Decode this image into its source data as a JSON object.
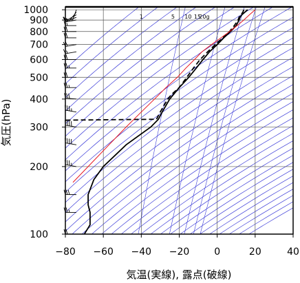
{
  "chart_data": {
    "type": "line",
    "title": "",
    "xlabel": "気温(実線), 露点(破線)",
    "ylabel": "気圧(hPa)",
    "xlim": [
      -80,
      40
    ],
    "ylim": [
      1030,
      100
    ],
    "y_scale": "log",
    "x_ticks": [
      "−80",
      "−60",
      "−40",
      "−20",
      "0",
      "20",
      "40"
    ],
    "x_tick_values": [
      -80,
      -60,
      -40,
      -20,
      0,
      20,
      40
    ],
    "y_ticks": [
      "100",
      "200",
      "300",
      "400",
      "500",
      "600",
      "700",
      "800",
      "900",
      "1000"
    ],
    "y_tick_values": [
      100,
      200,
      300,
      400,
      500,
      600,
      700,
      800,
      900,
      1000
    ],
    "mixing_ratio_labels": [
      "1",
      "5",
      "10",
      "15",
      "20g"
    ],
    "mixing_ratio_values": [
      1,
      5,
      10,
      15,
      20
    ],
    "grid": true,
    "colors": {
      "temperature": "#000000",
      "dewpoint": "#000000",
      "parcel": "#e8141e",
      "adiabats": "#3a3ad8",
      "grid": "#555555"
    },
    "series": [
      {
        "key": "temperature",
        "style": "solid",
        "p": [
          1000,
          975,
          950,
          925,
          900,
          850,
          800,
          750,
          700,
          650,
          600,
          550,
          500,
          450,
          400,
          350,
          325,
          300,
          250,
          200,
          175,
          150,
          135,
          125,
          110,
          100
        ],
        "t": [
          16,
          14.5,
          13,
          12,
          11.5,
          10,
          7,
          3.5,
          0,
          -4,
          -7.5,
          -11,
          -15,
          -20,
          -25,
          -29,
          -31,
          -35,
          -48,
          -60,
          -65,
          -68,
          -68,
          -67,
          -67,
          -70
        ]
      },
      {
        "key": "dewpoint",
        "style": "dashed",
        "p": [
          1000,
          975,
          950,
          925,
          900,
          850,
          800,
          750,
          700,
          650,
          600,
          550,
          500,
          450,
          420,
          400,
          375,
          350,
          325,
          322,
          320,
          320
        ],
        "t": [
          14,
          13.5,
          12.5,
          11.5,
          11,
          9,
          6.5,
          3,
          -1,
          -5,
          -9,
          -12.5,
          -16,
          -20,
          -24,
          -26,
          -28,
          -30,
          -32,
          -80,
          -80,
          -80
        ]
      },
      {
        "key": "parcel",
        "style": "solid",
        "p": [
          1000,
          950,
          900,
          850,
          800,
          750,
          700,
          650,
          600,
          550,
          500,
          450,
          400,
          350,
          300,
          250,
          200,
          170
        ],
        "t": [
          20,
          17,
          14,
          10.5,
          6.5,
          2,
          -3,
          -8,
          -12,
          -16.5,
          -21,
          -27,
          -33,
          -40,
          -48,
          -57,
          -68,
          -76
        ]
      }
    ],
    "wind_barbs": {
      "p": [
        1000,
        975,
        950,
        925,
        900,
        850,
        800,
        750,
        700,
        650,
        600,
        550,
        500,
        450,
        400,
        350,
        300,
        250,
        200,
        150,
        125,
        100
      ],
      "speed_kt": [
        5,
        10,
        10,
        15,
        15,
        15,
        20,
        20,
        20,
        15,
        20,
        25,
        20,
        25,
        30,
        35,
        40,
        40,
        35,
        30,
        25,
        20
      ],
      "dir_deg": [
        200,
        220,
        240,
        250,
        260,
        270,
        270,
        270,
        260,
        260,
        270,
        270,
        270,
        270,
        275,
        280,
        280,
        280,
        280,
        270,
        270,
        270
      ]
    }
  }
}
